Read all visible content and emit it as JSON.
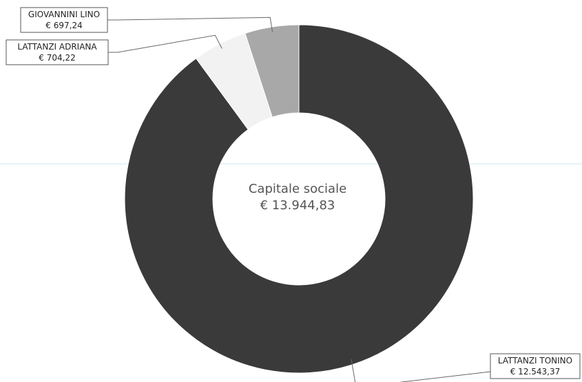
{
  "chart_data": {
    "type": "pie",
    "style": "donut",
    "center_label": {
      "title": "Capitale sociale",
      "total": "€ 13.944,83"
    },
    "total": 13944.83,
    "slices": [
      {
        "name": "LATTANZI TONINO",
        "value": 12543.37,
        "value_label": "€ 12.543,37",
        "color": "#3a3a3a"
      },
      {
        "name": "LATTANZI ADRIANA",
        "value": 704.22,
        "value_label": "€ 704,22",
        "color": "#f2f2f2"
      },
      {
        "name": "GIOVANNINI LINO",
        "value": 697.24,
        "value_label": "€ 697,24",
        "color": "#a8a8a8"
      }
    ]
  }
}
